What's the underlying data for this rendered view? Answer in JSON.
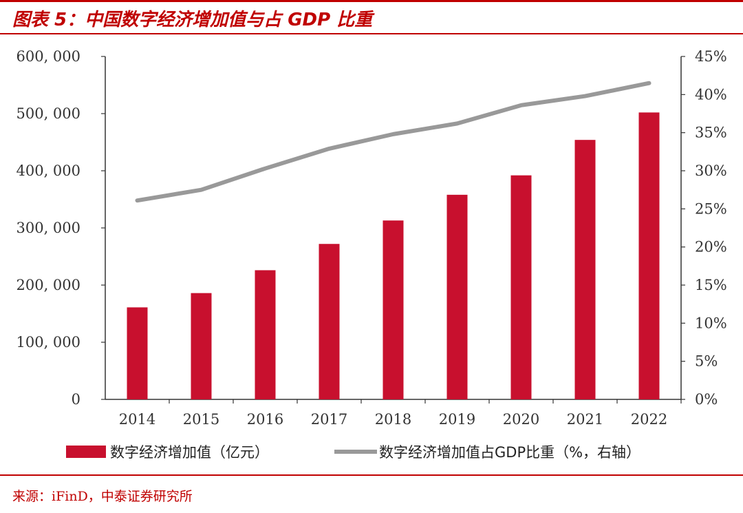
{
  "figure": {
    "title": "图表 5：中国数字经济增加值与占 GDP 比重",
    "source": "来源：iFinD，中泰证券研究所"
  },
  "chart_data": {
    "type": "bar",
    "title": "中国数字经济增加值与占 GDP 比重",
    "categories": [
      "2014",
      "2015",
      "2016",
      "2017",
      "2018",
      "2019",
      "2020",
      "2021",
      "2022"
    ],
    "series": [
      {
        "name": "数字经济增加值（亿元）",
        "type": "bar",
        "axis": "left",
        "color": "#c8102e",
        "values": [
          161000,
          186000,
          226000,
          272000,
          313000,
          358000,
          392000,
          454000,
          502000
        ]
      },
      {
        "name": "数字经济增加值占GDP比重（%，右轴）",
        "type": "line",
        "axis": "right",
        "color": "#999999",
        "values": [
          26.1,
          27.5,
          30.3,
          32.9,
          34.8,
          36.2,
          38.6,
          39.8,
          41.5
        ]
      }
    ],
    "y_left": {
      "min": 0,
      "max": 600000,
      "ticks": [
        0,
        100000,
        200000,
        300000,
        400000,
        500000,
        600000
      ],
      "tick_labels": [
        "0",
        "100, 000",
        "200, 000",
        "300, 000",
        "400, 000",
        "500, 000",
        "600, 000"
      ]
    },
    "y_right": {
      "min": 0,
      "max": 45,
      "ticks": [
        0,
        5,
        10,
        15,
        20,
        25,
        30,
        35,
        40,
        45
      ],
      "tick_labels": [
        "0%",
        "5%",
        "10%",
        "15%",
        "20%",
        "25%",
        "30%",
        "35%",
        "40%",
        "45%"
      ]
    },
    "xlabel": "",
    "ylabel": "",
    "grid": false,
    "legend": "bottom"
  }
}
